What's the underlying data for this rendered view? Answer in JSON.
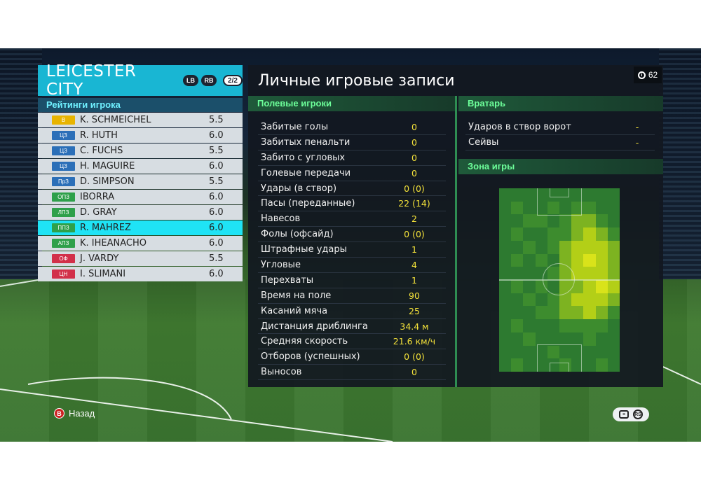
{
  "team": {
    "name": "LEICESTER CITY",
    "lb_label": "LB",
    "rb_label": "RB",
    "page": "2/2"
  },
  "ratings_title": "Рейтинги игрока",
  "players": [
    {
      "pos": "В",
      "pos_color": "#e8b400",
      "name": "K. SCHMEICHEL",
      "rating": "5.5"
    },
    {
      "pos": "ЦЗ",
      "pos_color": "#2b6fb8",
      "name": "R. HUTH",
      "rating": "6.0"
    },
    {
      "pos": "ЦЗ",
      "pos_color": "#2b6fb8",
      "name": "C. FUCHS",
      "rating": "5.5"
    },
    {
      "pos": "ЦЗ",
      "pos_color": "#2b6fb8",
      "name": "H. MAGUIRE",
      "rating": "6.0"
    },
    {
      "pos": "ПрЗ",
      "pos_color": "#2b6fb8",
      "name": "D. SIMPSON",
      "rating": "5.5"
    },
    {
      "pos": "ОПЗ",
      "pos_color": "#2ea04a",
      "name": "IBORRA",
      "rating": "6.0"
    },
    {
      "pos": "ЛПЗ",
      "pos_color": "#2ea04a",
      "name": "D. GRAY",
      "rating": "6.0"
    },
    {
      "pos": "ППЗ",
      "pos_color": "#2ea04a",
      "name": "R. MAHREZ",
      "rating": "6.0",
      "highlight": true
    },
    {
      "pos": "АПЗ",
      "pos_color": "#2ea04a",
      "name": "K. IHEANACHO",
      "rating": "6.0"
    },
    {
      "pos": "ОФ",
      "pos_color": "#d2304a",
      "name": "J. VARDY",
      "rating": "5.5"
    },
    {
      "pos": "ЦН",
      "pos_color": "#d2304a",
      "name": "I. SLIMANI",
      "rating": "6.0"
    }
  ],
  "main": {
    "title": "Личные игровые записи",
    "timer": "62",
    "field_header": "Полевые игроки",
    "gk_header": "Вратарь",
    "zone_header": "Зона игры"
  },
  "field_stats": [
    {
      "label": "Забитые голы",
      "value": "0"
    },
    {
      "label": "Забитых пенальти",
      "value": "0"
    },
    {
      "label": "Забито с угловых",
      "value": "0"
    },
    {
      "label": "Голевые передачи",
      "value": "0"
    },
    {
      "label": "Удары (в створ)",
      "value": "0 (0)"
    },
    {
      "label": "Пасы (переданные)",
      "value": "22 (14)"
    },
    {
      "label": "Навесов",
      "value": "2"
    },
    {
      "label": "Фолы (офсайд)",
      "value": "0 (0)"
    },
    {
      "label": "Штрафные удары",
      "value": "1"
    },
    {
      "label": "Угловые",
      "value": "4"
    },
    {
      "label": "Перехваты",
      "value": "1"
    },
    {
      "label": "Время на поле",
      "value": "90"
    },
    {
      "label": "Касаний мяча",
      "value": "25"
    },
    {
      "label": "Дистанция дриблинга",
      "value": "34.4 м"
    },
    {
      "label": "Средняя скорость",
      "value": "21.6 км/ч"
    },
    {
      "label": "Отборов (успешных)",
      "value": "0 (0)"
    },
    {
      "label": "Выносов",
      "value": "0"
    }
  ],
  "gk_stats": [
    {
      "label": "Ударов в створ ворот",
      "value": "-"
    },
    {
      "label": "Сейвы",
      "value": "-"
    }
  ],
  "heatmap": {
    "cols": 10,
    "rows": 14,
    "levels": [
      [
        0,
        0,
        0,
        0,
        0,
        0,
        0,
        0,
        0,
        0
      ],
      [
        0,
        1,
        0,
        0,
        1,
        0,
        1,
        1,
        0,
        0
      ],
      [
        0,
        0,
        1,
        1,
        0,
        1,
        2,
        2,
        1,
        0
      ],
      [
        0,
        1,
        0,
        0,
        1,
        1,
        2,
        3,
        2,
        1
      ],
      [
        0,
        0,
        1,
        0,
        1,
        2,
        3,
        3,
        3,
        2
      ],
      [
        0,
        1,
        0,
        1,
        0,
        2,
        3,
        4,
        3,
        2
      ],
      [
        0,
        0,
        0,
        0,
        1,
        2,
        3,
        3,
        3,
        2
      ],
      [
        0,
        1,
        0,
        1,
        0,
        2,
        2,
        3,
        4,
        3
      ],
      [
        0,
        0,
        1,
        0,
        1,
        2,
        3,
        3,
        3,
        2
      ],
      [
        0,
        0,
        0,
        1,
        1,
        2,
        2,
        3,
        2,
        1
      ],
      [
        0,
        1,
        0,
        0,
        0,
        1,
        1,
        1,
        1,
        0
      ],
      [
        0,
        0,
        1,
        0,
        0,
        0,
        0,
        1,
        0,
        0
      ],
      [
        0,
        0,
        0,
        0,
        1,
        0,
        0,
        0,
        0,
        0
      ],
      [
        0,
        1,
        0,
        0,
        0,
        1,
        0,
        0,
        1,
        0
      ]
    ],
    "palette": [
      "#2d7a30",
      "#3d8c2e",
      "#7db321",
      "#b3cf17",
      "#d9e31a"
    ]
  },
  "footer": {
    "back_button": "B",
    "back_label": "Назад",
    "options_right": "RS"
  }
}
